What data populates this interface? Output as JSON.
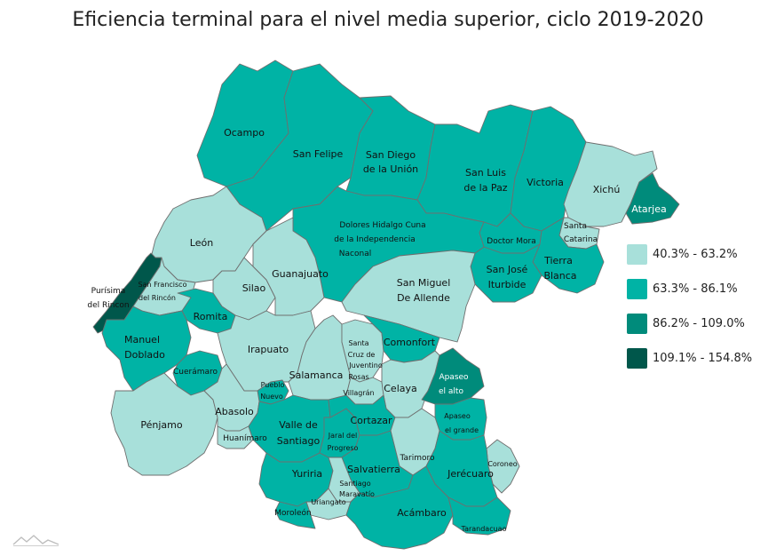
{
  "title": "Eficiencia terminal para el nivel media superior, ciclo 2019-2020",
  "legend": [
    {
      "label": "40.3% - 63.2%",
      "color": "#a8e0da"
    },
    {
      "label": "63.3% - 86.1%",
      "color": "#00b3a5"
    },
    {
      "label": "86.2% - 109.0%",
      "color": "#008b7b"
    },
    {
      "label": "109.1% - 154.8%",
      "color": "#00574b"
    }
  ],
  "municipalities": {
    "ocampo": {
      "name": "Ocampo",
      "range": "63.3% - 86.1%"
    },
    "san_felipe": {
      "name": "San Felipe",
      "range": "63.3% - 86.1%"
    },
    "san_diego": {
      "name_line1": "San Diego",
      "name_line2": "de la Unión",
      "range": "63.3% - 86.1%"
    },
    "san_luis_paz": {
      "name_line1": "San Luis",
      "name_line2": "de la Paz",
      "range": "63.3% - 86.1%"
    },
    "victoria": {
      "name": "Victoria",
      "range": "63.3% - 86.1%"
    },
    "xichu": {
      "name": "Xichú",
      "range": "40.3% - 63.2%"
    },
    "atarjea": {
      "name": "Atarjea",
      "range": "86.2% - 109.0%"
    },
    "santa_catarina": {
      "name_line1": "Santa",
      "name_line2": "Catarina",
      "range": "40.3% - 63.2%"
    },
    "leon": {
      "name": "León",
      "range": "40.3% - 63.2%"
    },
    "dolores": {
      "name_line1": "Dolores Hidalgo Cuna",
      "name_line2": "de la Independencia",
      "name_line3": "Naconal",
      "range": "63.3% - 86.1%"
    },
    "doctor_mora": {
      "name": "Doctor Mora",
      "range": "63.3% - 86.1%"
    },
    "tierra_blanca": {
      "name_line1": "Tierra",
      "name_line2": "Blanca",
      "range": "63.3% - 86.1%"
    },
    "san_jose_iturbide": {
      "name_line1": "San José",
      "name_line2": "Iturbide",
      "range": "63.3% - 86.1%"
    },
    "purisima": {
      "name_line1": "Purísima",
      "name_line2": "del Rincon",
      "range": "109.1% - 154.8%"
    },
    "san_francisco": {
      "name_line1": "San Francisco",
      "name_line2": "del Rincón",
      "range": "40.3% - 63.2%"
    },
    "silao": {
      "name": "Silao",
      "range": "40.3% - 63.2%"
    },
    "guanajuato": {
      "name": "Guanajuato",
      "range": "40.3% - 63.2%"
    },
    "san_miguel": {
      "name_line1": "San Miguel",
      "name_line2": "De Allende",
      "range": "40.3% - 63.2%"
    },
    "romita": {
      "name": "Romita",
      "range": "63.3% - 86.1%"
    },
    "manuel_doblado": {
      "name_line1": "Manuel",
      "name_line2": "Doblado",
      "range": "63.3% - 86.1%"
    },
    "irapuato": {
      "name": "Irapuato",
      "range": "40.3% - 63.2%"
    },
    "comonfort": {
      "name": "Comonfort",
      "range": "63.3% - 86.1%"
    },
    "santa_cruz": {
      "name_line1": "Santa",
      "name_line2": "Cruz de",
      "name_line3": "Juventino",
      "name_line4": "Rosas",
      "range": "40.3% - 63.2%"
    },
    "cueramaro": {
      "name": "Cuerámaro",
      "range": "63.3% - 86.1%"
    },
    "salamanca": {
      "name": "Salamanca",
      "range": "40.3% - 63.2%"
    },
    "celaya": {
      "name": "Celaya",
      "range": "40.3% - 63.2%"
    },
    "apaseo_alto": {
      "name_line1": "Apaseo",
      "name_line2": "el alto",
      "range": "86.2% - 109.0%"
    },
    "villagran": {
      "name": "Villagrán",
      "range": "40.3% - 63.2%"
    },
    "pueblo_nuevo": {
      "name_line1": "Pueblo",
      "name_line2": "Nuevo",
      "range": "63.3% - 86.1%"
    },
    "penjamo": {
      "name": "Pénjamo",
      "range": "40.3% - 63.2%"
    },
    "abasolo": {
      "name": "Abasolo",
      "range": "40.3% - 63.2%"
    },
    "apaseo_grande": {
      "name_line1": "Apaseo",
      "name_line2": "el grande",
      "range": "63.3% - 86.1%"
    },
    "valle_santiago": {
      "name_line1": "Valle de",
      "name_line2": "Santiago",
      "range": "63.3% - 86.1%"
    },
    "cortazar": {
      "name": "Cortazar",
      "range": "63.3% - 86.1%"
    },
    "jaral": {
      "name_line1": "Jaral del",
      "name_line2": "Progreso",
      "range": "63.3% - 86.1%"
    },
    "huanimaro": {
      "name": "Huanímaro",
      "range": "40.3% - 63.2%"
    },
    "tarimoro": {
      "name": "Tarimoro",
      "range": "40.3% - 63.2%"
    },
    "coroneo": {
      "name": "Coroneo",
      "range": "40.3% - 63.2%"
    },
    "salvatierra": {
      "name": "Salvatierra",
      "range": "63.3% - 86.1%"
    },
    "jerecuaro": {
      "name": "Jerécuaro",
      "range": "63.3% - 86.1%"
    },
    "yuriria": {
      "name": "Yuriria",
      "range": "63.3% - 86.1%"
    },
    "santiago_maravatio": {
      "name_line1": "Santiago",
      "name_line2": "Maravatío",
      "range": "40.3% - 63.2%"
    },
    "uriangato": {
      "name": "Uriangato",
      "range": "40.3% - 63.2%"
    },
    "moroleon": {
      "name": "Moroleón",
      "range": "63.3% - 86.1%"
    },
    "acambaro": {
      "name": "Acámbaro",
      "range": "63.3% - 86.1%"
    },
    "tarandacuao": {
      "name": "Tarandacuao",
      "range": "63.3% - 86.1%"
    }
  }
}
